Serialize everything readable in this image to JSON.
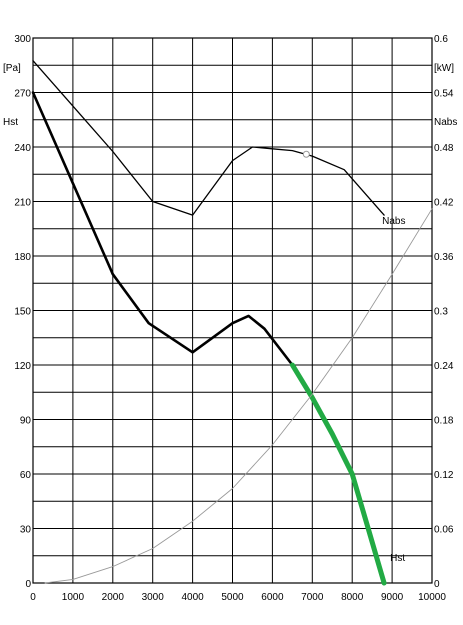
{
  "chart_data": {
    "type": "line",
    "x_ticks": [
      "0",
      "1000",
      "2000",
      "3000",
      "4000",
      "5000",
      "6000",
      "7000",
      "8000",
      "9000",
      "10000"
    ],
    "xlim": [
      0,
      10000
    ],
    "y_left": {
      "ticks": [
        "0",
        "30",
        "60",
        "90",
        "120",
        "150",
        "180",
        "210",
        "240",
        "270",
        "300"
      ],
      "lim": [
        0,
        300
      ],
      "unit": "[Pa]",
      "label": "Hst"
    },
    "y_right": {
      "ticks": [
        "0",
        "0.06",
        "0.12",
        "0.18",
        "0.24",
        "0.3",
        "0.36",
        "0.42",
        "0.48",
        "0.54",
        "0.6"
      ],
      "lim": [
        0,
        0.6
      ],
      "unit": "[kW]",
      "label": "Nabs"
    },
    "grid": true,
    "series": [
      {
        "name": "Nabs",
        "axis": "right",
        "color": "#000000",
        "x": [
          0,
          1000,
          2000,
          3000,
          4000,
          5000,
          5500,
          6000,
          6500,
          7000,
          7800,
          8800
        ],
        "y": [
          0.575,
          0.525,
          0.475,
          0.42,
          0.405,
          0.465,
          0.48,
          0.478,
          0.476,
          0.47,
          0.455,
          0.405
        ]
      },
      {
        "name": "Hst",
        "axis": "left",
        "color": "#000000",
        "x": [
          0,
          1000,
          2000,
          2900,
          4000,
          5000,
          5400,
          5800,
          6500
        ],
        "y": [
          270,
          220,
          170,
          143,
          127,
          143,
          147,
          140,
          120
        ]
      },
      {
        "name": "Hst",
        "axis": "left",
        "color": "#22aa44",
        "x": [
          6500,
          7000,
          7500,
          8000,
          8400,
          8800
        ],
        "y": [
          120,
          102,
          82,
          60,
          30,
          0
        ]
      },
      {
        "name": "",
        "axis": "left",
        "color": "#999999",
        "x": [
          300,
          1000,
          2000,
          3000,
          4000,
          5000,
          6000,
          7000,
          8000,
          9000,
          10000
        ],
        "y": [
          0,
          2,
          9,
          19,
          34,
          52,
          76,
          104,
          135,
          170,
          206
        ]
      }
    ],
    "marker": {
      "x": 6850,
      "y": 0.472,
      "axis": "right"
    },
    "annotations": [
      {
        "text": "Nabs",
        "x": 8750,
        "y": 0.395,
        "axis": "right"
      },
      {
        "text": "Hst",
        "x": 8950,
        "y": 12,
        "axis": "left"
      }
    ]
  }
}
